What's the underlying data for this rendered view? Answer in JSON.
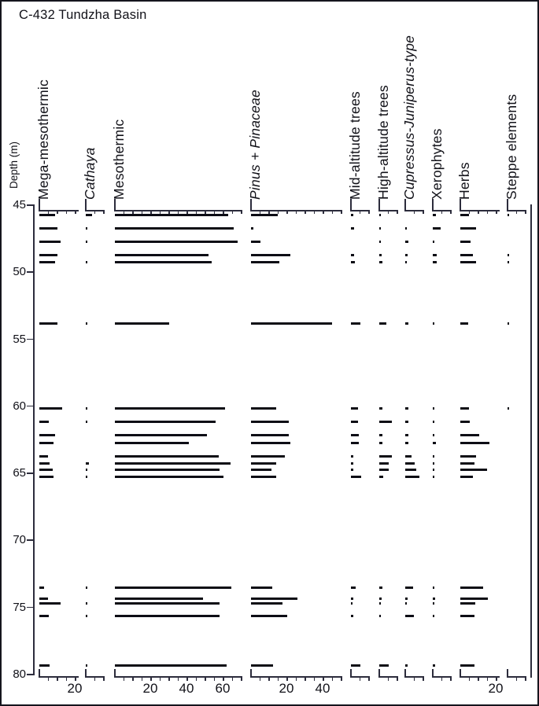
{
  "title": "C-432 Tundzha Basin",
  "depth_axis": {
    "label": "Depth (m)",
    "min": 45,
    "max": 80,
    "ticks": [
      45,
      50,
      55,
      60,
      65,
      70,
      75,
      80
    ]
  },
  "chart_data": {
    "type": "bar",
    "orientation": "horizontal",
    "title": "C-432 Tundzha Basin",
    "ylabel": "Depth (m)",
    "y_range": [
      45,
      80
    ],
    "grid": false,
    "legend_position": "none",
    "depths": [
      45.8,
      46.8,
      47.8,
      48.8,
      49.3,
      53.9,
      60.2,
      61.2,
      62.2,
      62.8,
      63.8,
      64.3,
      64.8,
      65.3,
      73.6,
      74.4,
      74.75,
      75.7,
      79.4
    ],
    "series": [
      {
        "name": "Mega-mesothermic",
        "italic": false,
        "axis_max": 22,
        "axis_ticks": [
          5,
          10,
          15,
          20
        ],
        "axis_labels": [
          20
        ],
        "values": [
          8.7,
          10,
          12,
          10.4,
          8.7,
          10,
          13,
          5.5,
          9,
          8,
          5,
          6,
          7.5,
          8,
          3,
          5,
          12,
          5.5,
          6
        ]
      },
      {
        "name": "Cathaya",
        "italic": true,
        "axis_max": 10,
        "axis_ticks": [
          5,
          10
        ],
        "axis_labels": [],
        "values": [
          3.5,
          1,
          1,
          0,
          1,
          1,
          1,
          1,
          0,
          0,
          0,
          2,
          1,
          1,
          1,
          0,
          1,
          1,
          0.8
        ]
      },
      {
        "name": "Mesothermic",
        "italic": false,
        "axis_max": 70,
        "axis_ticks": [
          5,
          10,
          15,
          20,
          25,
          30,
          35,
          40,
          45,
          50,
          55,
          60,
          65,
          70
        ],
        "axis_labels": [
          20,
          40,
          60
        ],
        "values": [
          63,
          66,
          68,
          52,
          53.5,
          30,
          61,
          56,
          51,
          41,
          57.5,
          64,
          58,
          60,
          64.5,
          49,
          58,
          58,
          62
        ]
      },
      {
        "name": "Pinus + Pinaceae",
        "italic": true,
        "axis_max": 50,
        "axis_ticks": [
          5,
          10,
          15,
          20,
          25,
          30,
          35,
          40,
          45,
          50
        ],
        "axis_labels": [
          20,
          40
        ],
        "values": [
          15,
          1.5,
          5.5,
          22,
          16,
          45,
          14,
          21,
          21,
          22,
          19,
          14,
          11.5,
          14,
          12,
          26,
          17.5,
          20,
          12.5
        ]
      },
      {
        "name": "Mid-altitude trees",
        "italic": false,
        "axis_max": 10,
        "axis_ticks": [
          5,
          10
        ],
        "axis_labels": [],
        "values": [
          1.5,
          2,
          0,
          2,
          2.5,
          5.5,
          4,
          4,
          4.5,
          4.5,
          1.5,
          1.5,
          1.5,
          6,
          3,
          1.5,
          1,
          1.5,
          5.5
        ]
      },
      {
        "name": "High-altitude trees",
        "italic": false,
        "axis_max": 10,
        "axis_ticks": [
          5,
          10
        ],
        "axis_labels": [],
        "values": [
          1,
          1,
          1,
          1.5,
          2,
          4.3,
          2,
          7,
          2,
          2,
          7,
          5.5,
          5.5,
          2.5,
          2,
          1.5,
          1,
          1,
          5.5
        ]
      },
      {
        "name": "Cupressus-Juniperus-type",
        "italic": true,
        "axis_max": 11,
        "axis_ticks": [
          5,
          10
        ],
        "axis_labels": [],
        "values": [
          0,
          1,
          2,
          1.5,
          1,
          2,
          2,
          2,
          2,
          2,
          3.5,
          5.5,
          6.3,
          8,
          4.5,
          1.5,
          1,
          5,
          1.5
        ]
      },
      {
        "name": "Xerophytes",
        "italic": false,
        "axis_max": 10,
        "axis_ticks": [
          5,
          10
        ],
        "axis_labels": [],
        "values": [
          2,
          4.5,
          1,
          2.5,
          2.5,
          1,
          1,
          1,
          1,
          2,
          1,
          1,
          1,
          1,
          1,
          1.5,
          1,
          1,
          1.5
        ]
      },
      {
        "name": "Herbs",
        "italic": false,
        "axis_max": 22,
        "axis_ticks": [
          5,
          10,
          15,
          20
        ],
        "axis_labels": [
          20
        ],
        "values": [
          5,
          9,
          6,
          7,
          9,
          4.5,
          5,
          5.5,
          10.5,
          16.5,
          9,
          8,
          15,
          7,
          13,
          15.6,
          8.5,
          8,
          8
        ]
      },
      {
        "name": "Steppe elements",
        "italic": false,
        "axis_max": 10,
        "axis_ticks": [
          5,
          10
        ],
        "axis_labels": [],
        "values": [
          1,
          0,
          0,
          1,
          1,
          1,
          1,
          0,
          0,
          0,
          0,
          0,
          0,
          0,
          0,
          0,
          0,
          0,
          0
        ]
      }
    ]
  },
  "colors": {
    "bar": "#0d0d15",
    "axis": "#2c2c3c",
    "text": "#111118"
  }
}
